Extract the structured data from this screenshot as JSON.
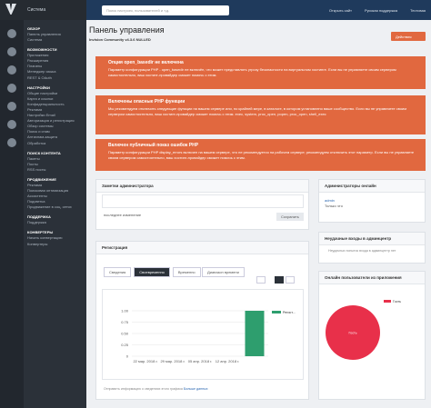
{
  "header": {
    "system": "Система",
    "search_placeholder": "Поиск настроек, пользователей и т.д.",
    "links": [
      "Открыть сайт",
      "Русская поддержка",
      "Тестовая"
    ]
  },
  "sidebar": {
    "sections": [
      {
        "title": "ОБЗОР",
        "items": [
          "Панель управления",
          "Система"
        ]
      },
      {
        "title": "ВОЗМОЖНОСТИ",
        "items": [
          "Приложения",
          "Расширения",
          "Плагины",
          "Менеджер языка",
          "REST & OAuth"
        ]
      },
      {
        "title": "НАСТРОЙКИ",
        "items": [
          "Общие настройки",
          "Карта и ссылки",
          "Конфиденциальность",
          "Реклама",
          "Настройки Email",
          "Авторизация и регистрация",
          "Обзор системы",
          "Поиск и спам",
          "Антиспам-защита",
          "Обработка"
        ]
      },
      {
        "title": "ПОИСК КОНТЕНТА",
        "items": [
          "Пакеты",
          "Посты",
          "RSS посты"
        ]
      },
      {
        "title": "ПРОДВИЖЕНИЕ",
        "items": [
          "Реклама",
          "Поисковая оптимизация",
          "Ассистенты",
          "Подсветка",
          "Продвижение в соц. сетях"
        ]
      },
      {
        "title": "ПОДДЕРЖКА",
        "items": [
          "Поддержка"
        ]
      },
      {
        "title": "КОНВЕРТЕРЫ",
        "items": [
          "Начать конвертацию",
          "Конвертеры"
        ]
      }
    ]
  },
  "page": {
    "title": "Панель управления",
    "version": "Invision Community v4.3.6 NULLED",
    "action": "Действия"
  },
  "alerts": [
    {
      "title": "Опция open_basedir не включена",
      "text": "Параметр конфигурации PHP - open_basedir не включён, что может представлять угрозу безопасности на виртуальном хостинге. Если вы не управляете своим сервером самостоятельно, ваш хостинг-провайдер сможет помочь с этим."
    },
    {
      "title": "Включены опасные PHP функции",
      "text": "Мы рекомендуем отключить следующие функции на вашем сервере или, по крайней мере, в каталоге, в котором установлено ваше сообщество. Если вы не управляете своим сервером самостоятельно, ваш хостинг-провайдер сможет помочь с этим. exec, system, proc_open, popen, proc_open, shell_exec"
    },
    {
      "title": "Включен публичный показ ошибок PHP",
      "text": "Параметр конфигурации PHP display_errors включен на вашем сервере, что не рекомендуется на рабочем сервере; рекомендуем отключить этот параметр. Если вы не управляете своим сервером самостоятельно, ваш хостинг-провайдер сможет помочь с этим."
    }
  ],
  "notes": {
    "title": "Заметки администратора",
    "last_updated": "последнее изменение",
    "save": "Сохранить"
  },
  "admins_online": {
    "title": "Администраторы онлайн",
    "name": "admin",
    "time": "Только что"
  },
  "failed_logins": {
    "title": "Неудачные входы в админцентр",
    "text": "Неудачных попыток входа в админцентр нет"
  },
  "registrations": {
    "title": "Регистрация",
    "tabs": [
      "Сведения",
      "Своевременно",
      "Временно"
    ],
    "range": "Диапазон времени",
    "footer": "Отправить информацию о сведениях этого графика",
    "footer_link": "Больше данных",
    "chart": {
      "type": "bar",
      "categories": [
        "22 мар. 2018 г.",
        "29 мар. 2018 г.",
        "05 апр. 2018 г.",
        "12 апр. 2018 г.",
        null
      ],
      "series": [
        {
          "name": "Регист...",
          "color": "#2e9e6e",
          "values": [
            0,
            0,
            0,
            0,
            1
          ]
        }
      ],
      "ylim": [
        0,
        1
      ],
      "yticks": [
        0,
        0.25,
        {
          "value": 0.5,
          "label": "0.50"
        },
        0.75,
        {
          "value": 1,
          "label": "1.00"
        }
      ],
      "grid": true
    }
  },
  "app_users": {
    "title": "Онлайн пользователи из приложения",
    "chart": {
      "type": "pie",
      "series": [
        {
          "name": "Гость",
          "color": "#e8304a",
          "value": 100
        }
      ]
    }
  }
}
